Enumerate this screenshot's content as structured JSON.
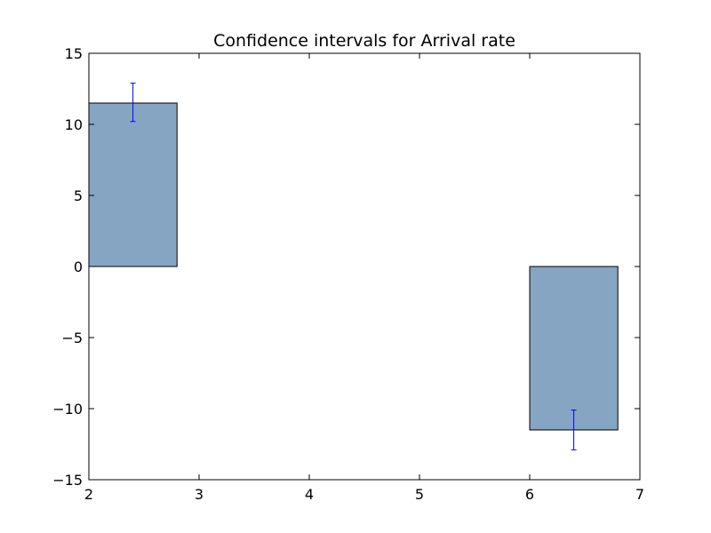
{
  "chart_data": {
    "type": "bar",
    "title": "Confidence intervals for Arrival rate",
    "xlabel": "",
    "ylabel": "",
    "xlim": [
      2,
      7
    ],
    "ylim": [
      -15,
      15
    ],
    "x_ticks": [
      2,
      3,
      4,
      5,
      6,
      7
    ],
    "y_ticks": [
      -15,
      -10,
      -5,
      0,
      5,
      10,
      15
    ],
    "x_tick_labels": [
      "2",
      "3",
      "4",
      "5",
      "6",
      "7"
    ],
    "y_tick_labels": [
      "−15",
      "−10",
      "−5",
      "0",
      "5",
      "10",
      "15"
    ],
    "bar_width": 0.8,
    "grid": false,
    "bars": [
      {
        "x": 2.0,
        "value": 11.5,
        "error_low": 10.2,
        "error_high": 12.9
      },
      {
        "x": 6.0,
        "value": -11.5,
        "error_low": -12.9,
        "error_high": -10.1
      }
    ],
    "colors": {
      "bar_fill": "#86a5c2",
      "bar_edge": "#000000",
      "error_bar": "#0000ff",
      "axes": "#000000"
    }
  }
}
